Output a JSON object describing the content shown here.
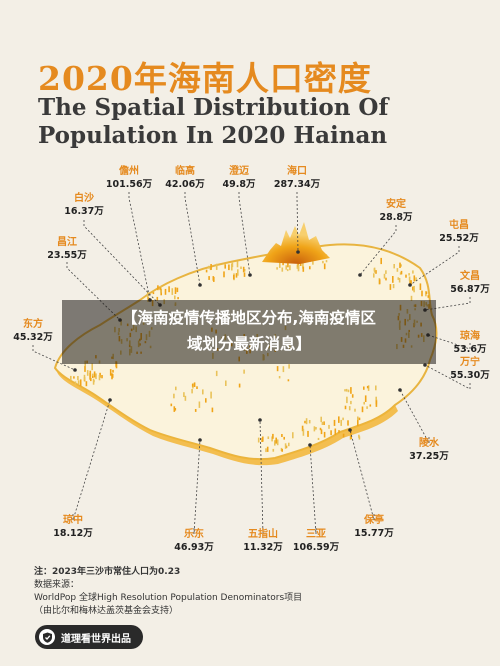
{
  "title": {
    "cn": "2020年海南人口密度",
    "en": "The Spatial Distribution Of Population In 2020 Hainan"
  },
  "labels": [
    {
      "key": "danzhou",
      "name": "儋州",
      "value": "101.56万"
    },
    {
      "key": "lingao",
      "name": "临高",
      "value": "42.06万"
    },
    {
      "key": "chengmai",
      "name": "澄迈",
      "value": "49.8万"
    },
    {
      "key": "haikou",
      "name": "海口",
      "value": "287.34万"
    },
    {
      "key": "baisha",
      "name": "白沙",
      "value": "16.37万"
    },
    {
      "key": "anding",
      "name": "安定",
      "value": "28.8万"
    },
    {
      "key": "tunchang",
      "name": "屯昌",
      "value": "25.52万"
    },
    {
      "key": "changjiang",
      "name": "昌江",
      "value": "23.55万"
    },
    {
      "key": "wenchang",
      "name": "文昌",
      "value": "56.87万"
    },
    {
      "key": "dongfang",
      "name": "东方",
      "value": "45.32万"
    },
    {
      "key": "qionghai",
      "name": "琼海",
      "value": "53.6万"
    },
    {
      "key": "wanning",
      "name": "万宁",
      "value": "55.30万"
    },
    {
      "key": "lingshui",
      "name": "陵水",
      "value": "37.25万"
    },
    {
      "key": "qiongzhong",
      "name": "琼中",
      "value": "18.12万"
    },
    {
      "key": "ledong",
      "name": "乐东",
      "value": "46.93万"
    },
    {
      "key": "wuzhishan",
      "name": "五指山",
      "value": "11.32万"
    },
    {
      "key": "sanya",
      "name": "三亚",
      "value": "106.59万"
    },
    {
      "key": "baoting",
      "name": "保亭",
      "value": "15.77万"
    }
  ],
  "overlay": {
    "line1": "【海南疫情传播地区分布,海南疫情区",
    "line2": "域划分最新消息】"
  },
  "notes": {
    "n1": "注：2023年三沙市常住人口为0.23",
    "n2": "数据来源：",
    "n3": "WorldPop 全球High Resolution Population Denominators项目",
    "n4": "（由比尔和梅林达盖茨基金会支持）"
  },
  "brand": {
    "label": "道理看世界出品",
    "icon": "shield-logo-icon"
  },
  "colors": {
    "accent": "#e58a1f",
    "island": "#fbf3dc",
    "density": "#f0a418"
  }
}
